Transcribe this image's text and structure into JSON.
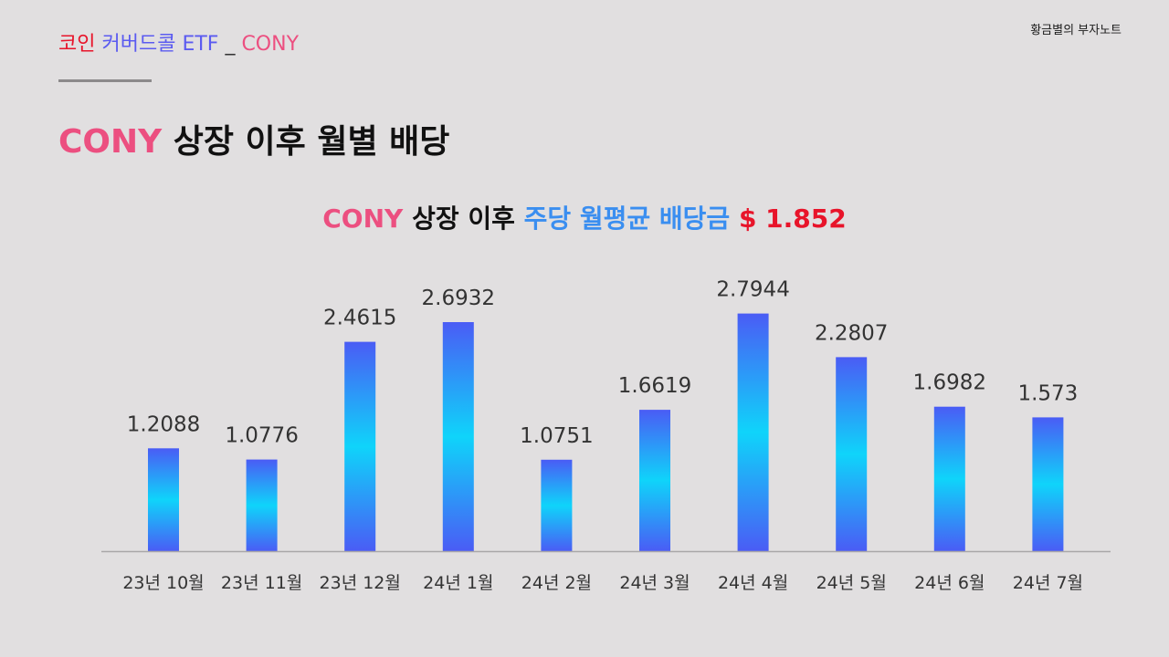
{
  "header": {
    "series_label_part1": "코인",
    "series_label_part2": "커버드콜 ETF",
    "separator": "_",
    "ticker": "CONY",
    "brand": "황금별의 부자노트"
  },
  "page_title": {
    "ticker": "CONY",
    "rest": "상장 이후 월별 배당"
  },
  "chart_title": {
    "ticker": "CONY",
    "part2": "상장 이후",
    "part3": "주당 월평균 배당금",
    "amount": "$ 1.852"
  },
  "colors": {
    "background": "#e1dfe0",
    "accent_pink": "#ec4f80",
    "accent_red": "#e8142a",
    "accent_blue": "#3a8ef0",
    "bar_top": "#4a5cf5",
    "bar_middle": "#0fd4fa"
  },
  "chart_data": {
    "type": "bar",
    "title": "CONY 상장 이후 주당 월평균 배당금 $ 1.852",
    "categories": [
      "23년 10월",
      "23년 11월",
      "23년 12월",
      "24년 1월",
      "24년 2월",
      "24년 3월",
      "24년 4월",
      "24년 5월",
      "24년 6월",
      "24년 7월"
    ],
    "values": [
      1.2088,
      1.0776,
      2.4615,
      2.6932,
      1.0751,
      1.6619,
      2.7944,
      2.2807,
      1.6982,
      1.573
    ],
    "value_labels": [
      "1.2088",
      "1.0776",
      "2.4615",
      "2.6932",
      "1.0751",
      "1.6619",
      "2.7944",
      "2.2807",
      "1.6982",
      "1.573"
    ],
    "xlabel": "",
    "ylabel": "",
    "ylim": [
      0,
      3
    ],
    "grid": false,
    "legend": "none"
  }
}
